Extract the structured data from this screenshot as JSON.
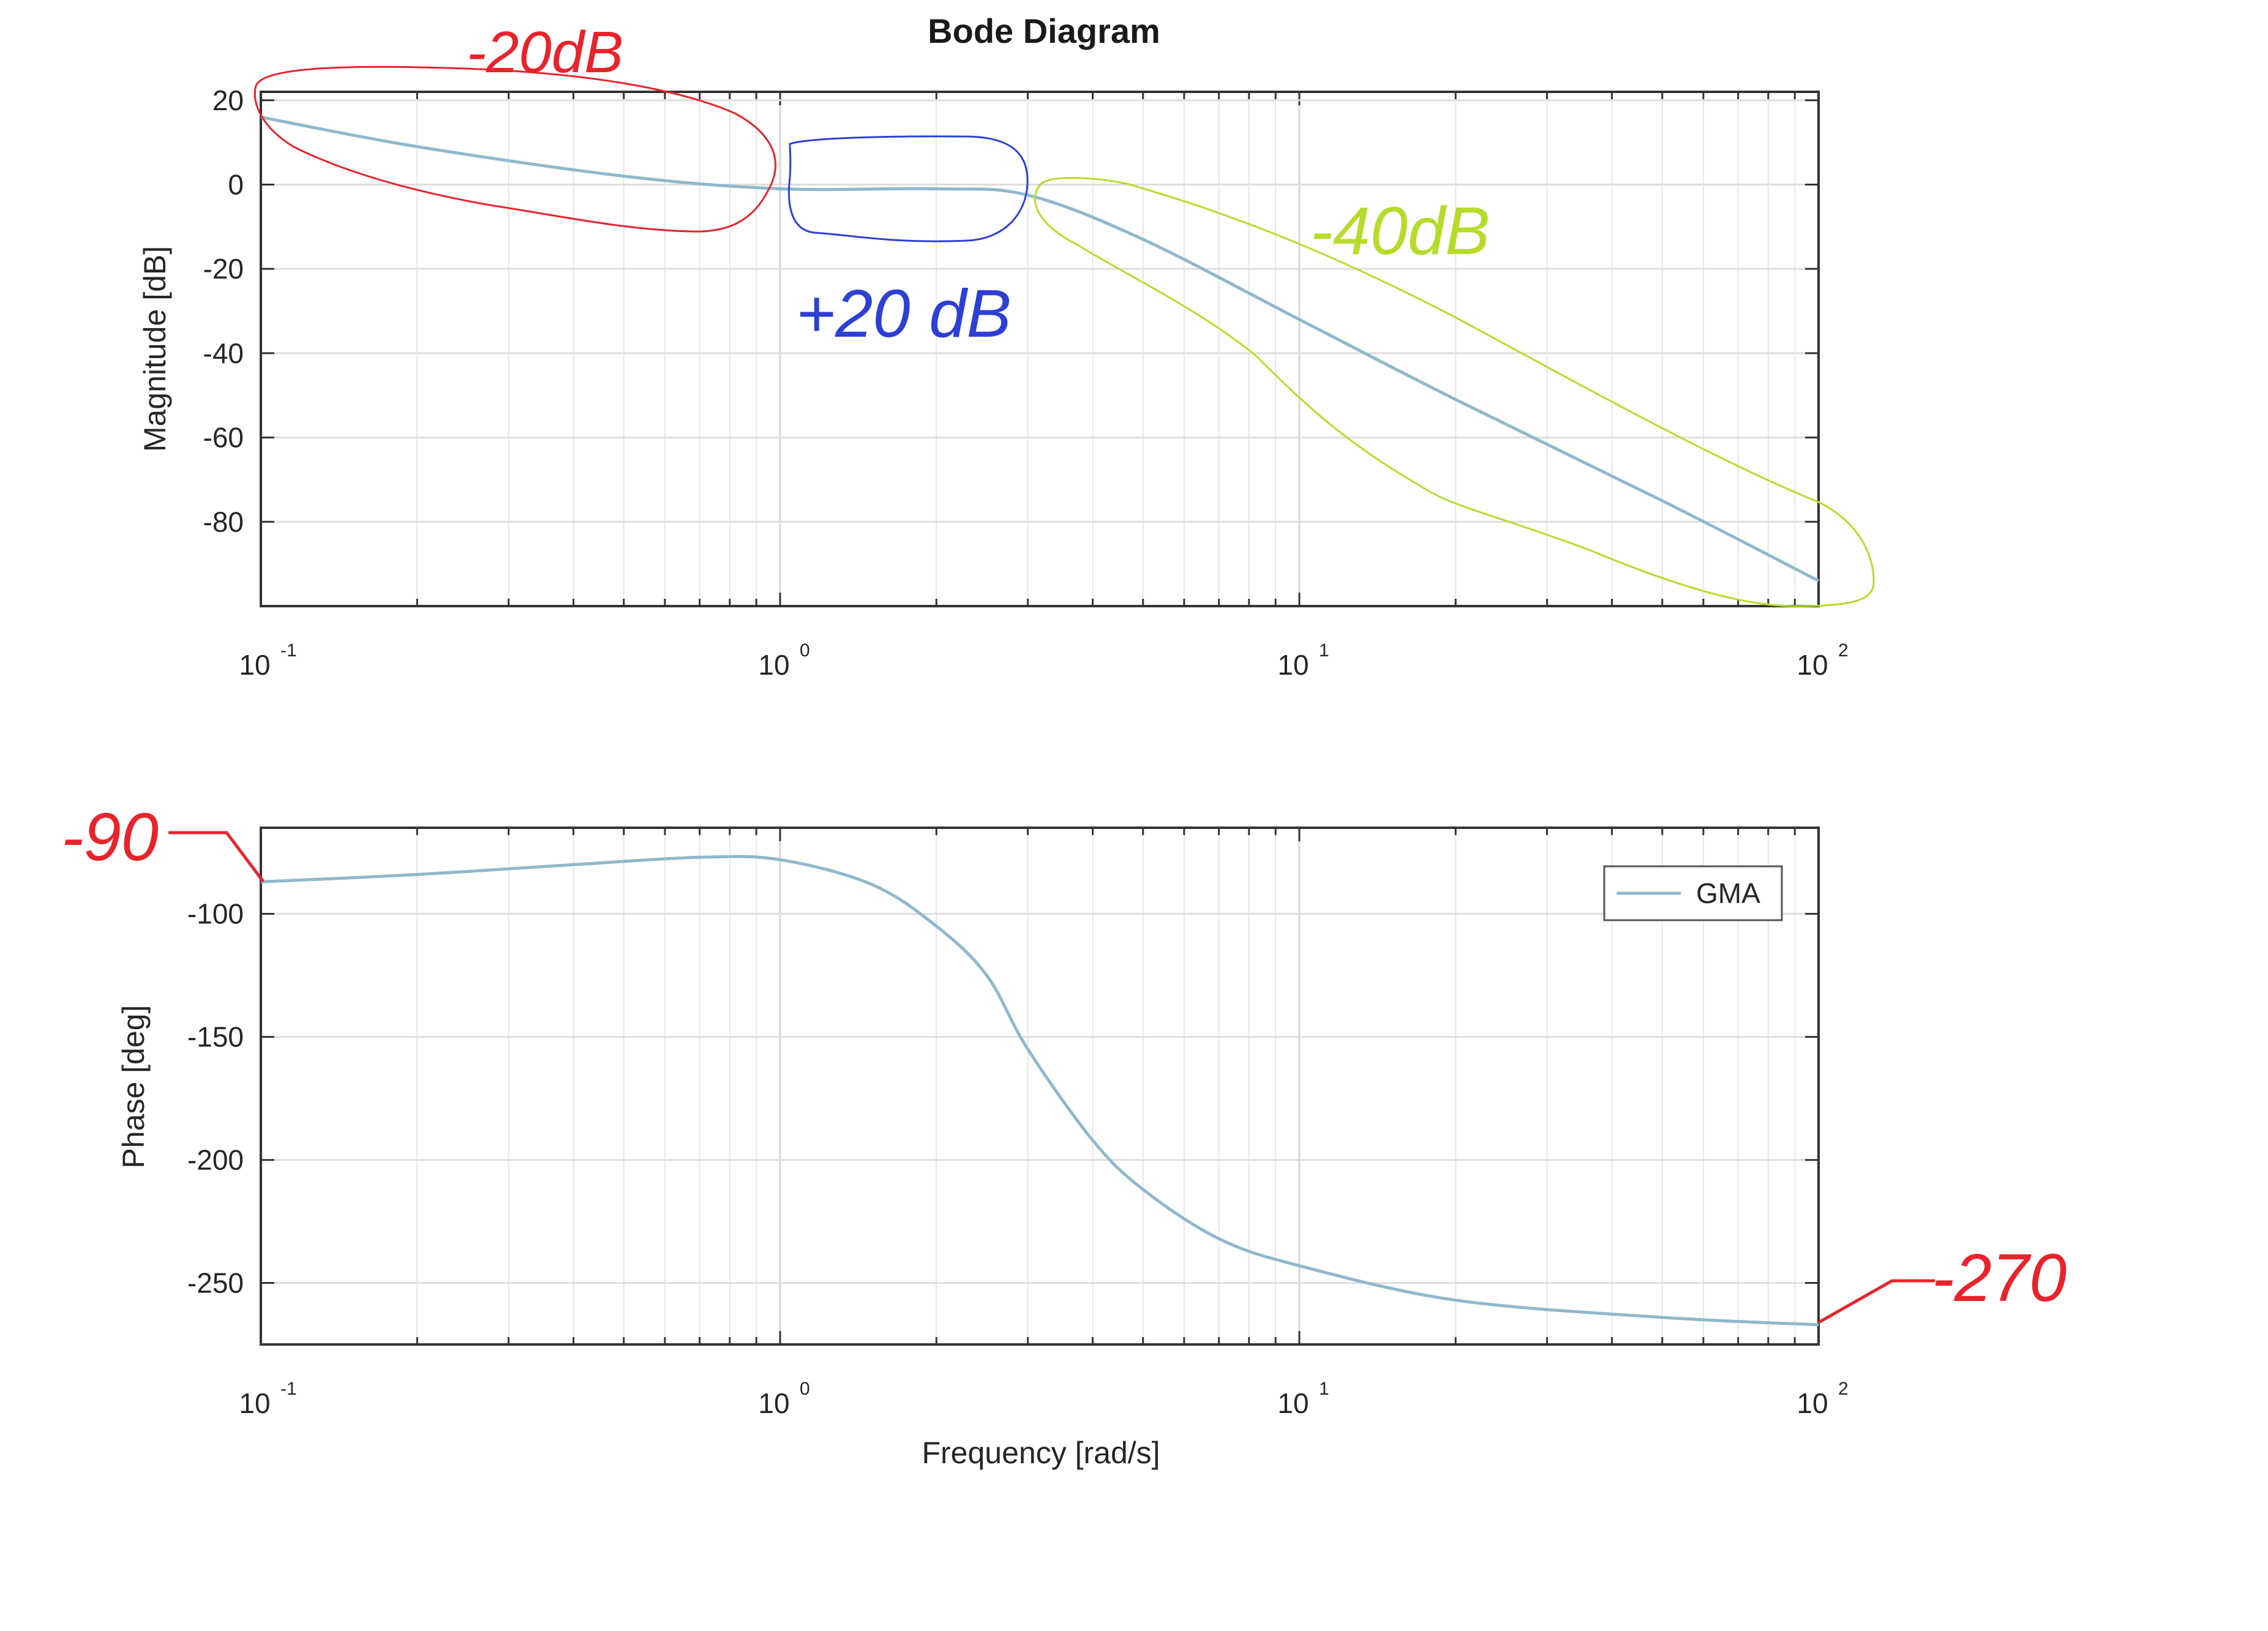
{
  "chart_data": [
    {
      "type": "line",
      "title": "Bode Diagram",
      "xlabel": "",
      "ylabel": "Magnitude [dB]",
      "xscale": "log",
      "xlim": [
        0.1,
        100
      ],
      "ylim": [
        -100,
        22
      ],
      "xticks": [
        "10",
        "10",
        "10",
        "10"
      ],
      "xtick_exponents": [
        "-1",
        "0",
        "1",
        "2"
      ],
      "yticks": [
        20,
        0,
        -20,
        -40,
        -60,
        -80
      ],
      "grid": true,
      "series": [
        {
          "color": "#8fb8cc",
          "x": [
            0.1,
            0.2,
            0.5,
            1,
            2,
            3,
            5,
            10,
            20,
            50,
            100
          ],
          "y": [
            16,
            9,
            2,
            -1,
            -1,
            -2.5,
            -13,
            -32,
            -51,
            -75,
            -94
          ]
        }
      ]
    },
    {
      "type": "line",
      "title": "",
      "xlabel": "Frequency [rad/s]",
      "ylabel": "Phase [deg]",
      "xscale": "log",
      "xlim": [
        0.1,
        100
      ],
      "ylim": [
        -275,
        -65
      ],
      "xticks": [
        "10",
        "10",
        "10",
        "10"
      ],
      "xtick_exponents": [
        "-1",
        "0",
        "1",
        "2"
      ],
      "yticks": [
        -100,
        -150,
        -200,
        -250
      ],
      "grid": true,
      "legend": {
        "position": "top-right",
        "entries": [
          "GMA"
        ]
      },
      "series": [
        {
          "name": "GMA",
          "color": "#8fb8cc",
          "x": [
            0.1,
            0.2,
            0.4,
            0.7,
            1,
            1.5,
            2,
            2.5,
            3,
            4,
            5,
            7,
            10,
            20,
            50,
            100
          ],
          "y": [
            -87,
            -84,
            -80,
            -77,
            -78,
            -88,
            -105,
            -125,
            -155,
            -192,
            -212,
            -232,
            -243,
            -257,
            -264,
            -267
          ]
        }
      ]
    }
  ],
  "annotations": {
    "red_top": "-20dB",
    "blue_mid": "+20 dB",
    "green_right": "-40dB",
    "red_phase_left": "-90",
    "red_phase_right": "-270",
    "colors": {
      "red": "#e8232b",
      "blue": "#2d3fd4",
      "green": "#b6dc2a"
    }
  }
}
